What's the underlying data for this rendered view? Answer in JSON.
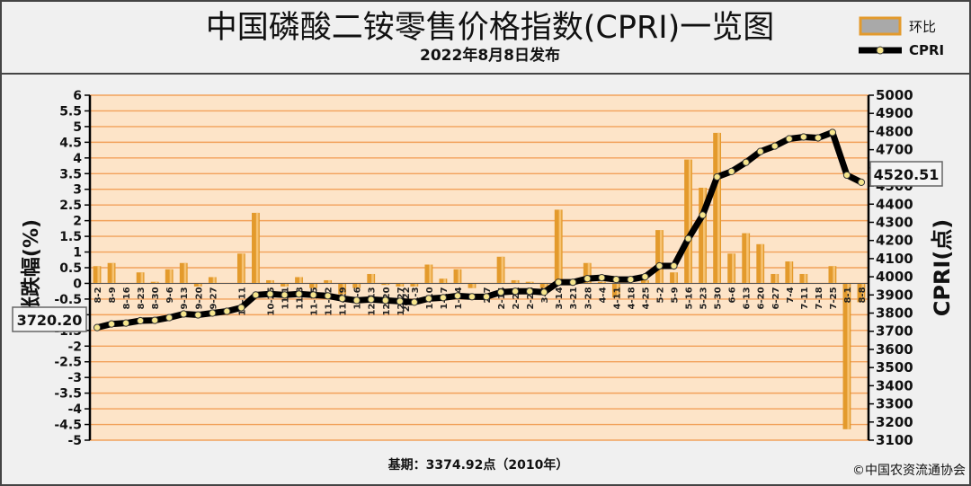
{
  "header": {
    "title": "中国磷酸二铵零售价格指数(CPRI)一览图",
    "subtitle": "2022年8月8日发布"
  },
  "legend": {
    "bar_label": "环比",
    "line_label": "CPRI"
  },
  "footer": {
    "base": "基期：3374.92点（2010年）",
    "copyright": "©中国农资流通协会"
  },
  "callouts": {
    "start": "3720.20",
    "end": "4520.51"
  },
  "colors": {
    "bar": "#e39a2c",
    "bar_light": "#f7c77a",
    "line": "#000000",
    "marker": "#f6e58d",
    "grid": "#f2a15a",
    "plot_bg": "#fde4c8"
  },
  "chart_data": {
    "type": "bar",
    "x_year_label": "2022",
    "categories": [
      "8-2",
      "8-9",
      "8-16",
      "8-23",
      "8-30",
      "9-6",
      "9-13",
      "9-20",
      "9-27",
      "10-4",
      "10-11",
      "10-18",
      "10-25",
      "11-1",
      "11-8",
      "11-15",
      "11-22",
      "11-29",
      "12-6",
      "12-13",
      "12-20",
      "12-27",
      "1-3",
      "1-10",
      "1-17",
      "1-24",
      "1-31",
      "2-7",
      "2-14",
      "2-21",
      "2-28",
      "3-7",
      "3-14",
      "3-21",
      "3-28",
      "4-4",
      "4-11",
      "4-18",
      "4-25",
      "5-2",
      "5-9",
      "5-16",
      "5-23",
      "5-30",
      "6-6",
      "6-13",
      "6-20",
      "6-27",
      "7-4",
      "7-11",
      "7-18",
      "7-25",
      "8-1",
      "8-8"
    ],
    "visible_tick_labels": [
      "8-2",
      "8-9",
      "8-16",
      "8-23",
      "8-30",
      "9-6",
      "9-13",
      "9-20",
      "9-27",
      "10-11",
      "10-25",
      "11-1",
      "11-8",
      "11-15",
      "11-22",
      "11-29",
      "12-6",
      "12-13",
      "12-20",
      "12-27",
      "1-3",
      "1-10",
      "1-17",
      "1-24",
      "2-7",
      "2-14",
      "2-21",
      "2-28",
      "3-7",
      "3-14",
      "3-21",
      "3-28",
      "4-4",
      "4-11",
      "4-18",
      "4-25",
      "5-2",
      "5-9",
      "5-16",
      "5-23",
      "5-30",
      "6-6",
      "6-13",
      "6-20",
      "6-27",
      "7-4",
      "7-11",
      "7-18",
      "7-25",
      "8-1",
      "8-8"
    ],
    "series": [
      {
        "name": "环比",
        "axis": "left",
        "kind": "bar",
        "values": [
          0.55,
          0.65,
          0.0,
          0.35,
          0.05,
          0.45,
          0.65,
          -0.1,
          0.2,
          0.0,
          0.95,
          2.25,
          0.1,
          -0.1,
          0.2,
          -0.15,
          0.1,
          -0.35,
          -0.15,
          0.3,
          -0.05,
          -0.1,
          -0.1,
          0.6,
          0.15,
          0.45,
          -0.15,
          0.0,
          0.85,
          0.1,
          0.05,
          -0.15,
          2.35,
          0.05,
          0.65,
          0.05,
          -0.45,
          0.0,
          0.1,
          1.7,
          0.35,
          3.95,
          3.05,
          4.8,
          0.95,
          1.6,
          1.25,
          0.3,
          0.7,
          0.3,
          0.0,
          0.55,
          -4.65,
          -0.6
        ]
      },
      {
        "name": "CPRI",
        "axis": "right",
        "kind": "line",
        "values": [
          3720.2,
          3740,
          3745,
          3758,
          3760,
          3775,
          3795,
          3790,
          3800,
          3810,
          3830,
          3900,
          3905,
          3900,
          3905,
          3900,
          3895,
          3880,
          3870,
          3875,
          3870,
          3865,
          3860,
          3880,
          3885,
          3895,
          3890,
          3890,
          3915,
          3920,
          3920,
          3915,
          3970,
          3970,
          3990,
          3995,
          3985,
          3985,
          4000,
          4060,
          4060,
          4210,
          4340,
          4550,
          4580,
          4630,
          4690,
          4720,
          4760,
          4770,
          4765,
          4795,
          4560,
          4520.51
        ]
      }
    ],
    "y_left": {
      "label": "涨跌幅(%)",
      "min": -5,
      "max": 6,
      "step": 0.5,
      "ticks": [
        "-5",
        "-4.5",
        "-4",
        "-3.5",
        "-3",
        "-2.5",
        "-2",
        "-1.5",
        "-1",
        "-0.5",
        "0",
        "0.5",
        "1",
        "1.5",
        "2",
        "2.5",
        "3",
        "3.5",
        "4",
        "4.5",
        "5",
        "5.5",
        "6"
      ]
    },
    "y_right": {
      "label": "CPRI(点)",
      "min": 3100,
      "max": 5000,
      "step": 100,
      "ticks": [
        "3100",
        "3200",
        "3300",
        "3400",
        "3500",
        "3600",
        "3700",
        "3800",
        "3900",
        "4000",
        "4100",
        "4200",
        "4300",
        "4400",
        "4500",
        "4600",
        "4700",
        "4800",
        "4900",
        "5000"
      ]
    },
    "legend_position": "top-right",
    "grid": true
  }
}
